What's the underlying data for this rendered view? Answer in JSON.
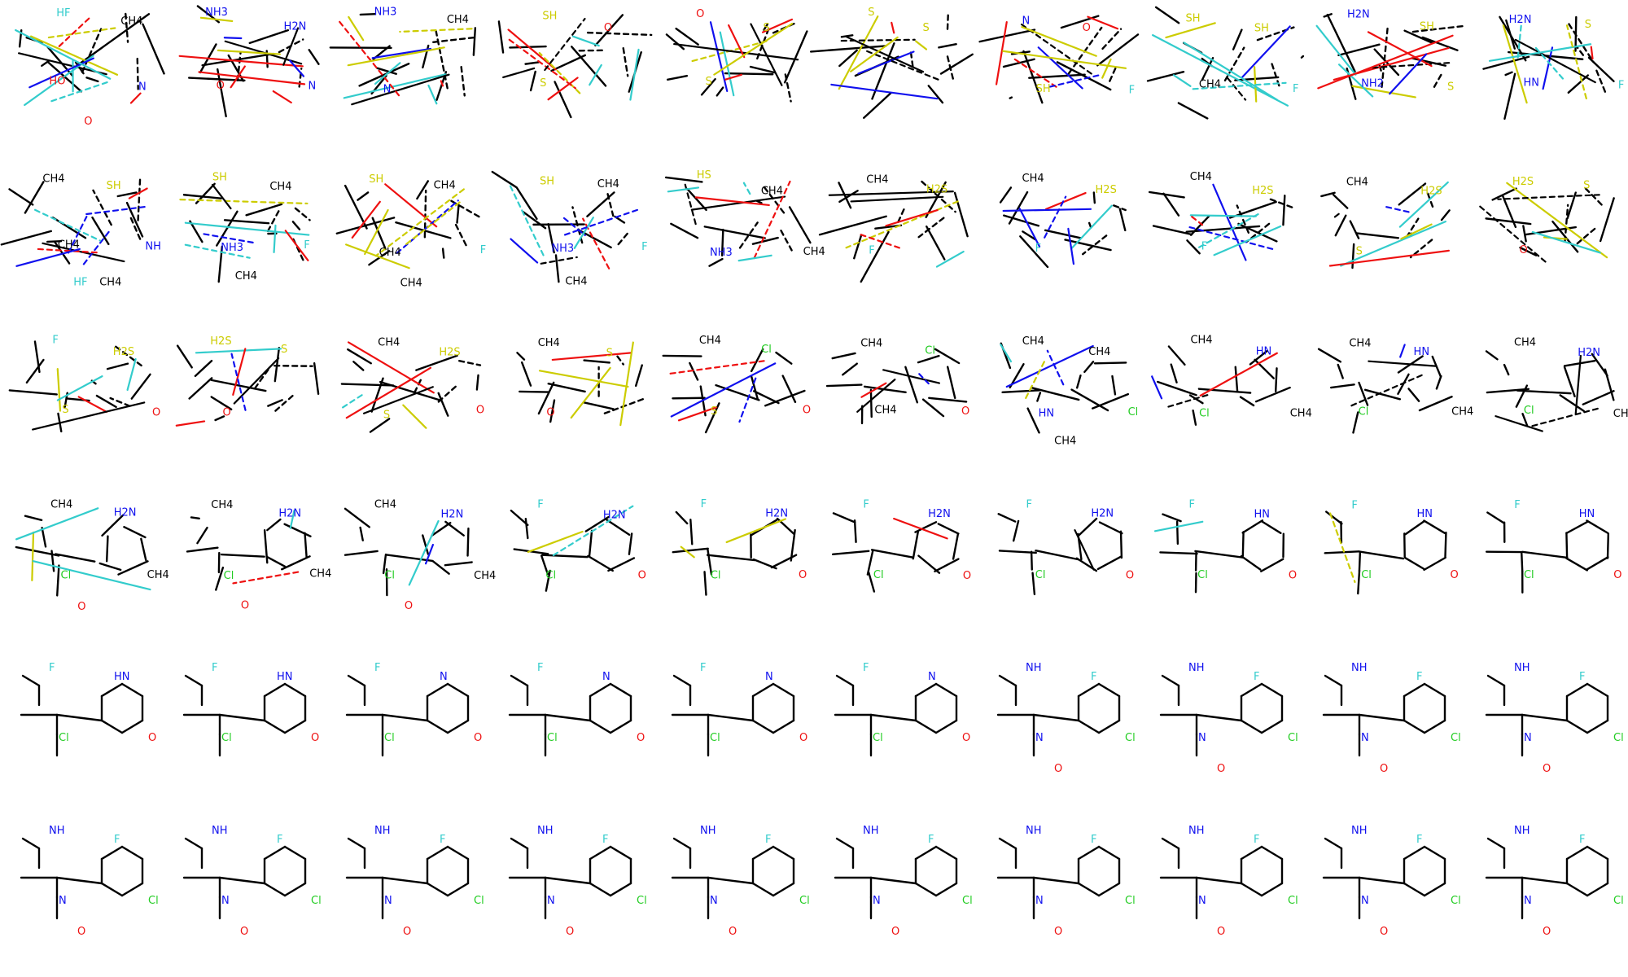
{
  "grid": {
    "rows": 6,
    "cols": 10,
    "colors": {
      "carbon": "#000000",
      "N": "#1010ee",
      "O": "#ee1010",
      "F": "#33cccc",
      "S": "#cccc00",
      "Cl": "#22cc22"
    }
  },
  "cells": [
    {
      "labels": [
        [
          "HF",
          "F"
        ],
        [
          "CH4",
          "C"
        ],
        [
          "HO",
          "O"
        ],
        [
          "N",
          "N"
        ],
        [
          "O",
          "O"
        ]
      ]
    },
    {
      "labels": [
        [
          "NH3",
          "N"
        ],
        [
          "H2N",
          "N"
        ],
        [
          "O",
          "O"
        ],
        [
          "N",
          "N"
        ]
      ]
    },
    {
      "labels": [
        [
          "NH3",
          "N"
        ],
        [
          "CH4",
          "C"
        ],
        [
          "N",
          "N"
        ]
      ]
    },
    {
      "labels": [
        [
          "SH",
          "S"
        ],
        [
          "O",
          "O"
        ],
        [
          "S",
          "S"
        ]
      ]
    },
    {
      "labels": [
        [
          "O",
          "O"
        ],
        [
          "S",
          "S"
        ],
        [
          "S",
          "S"
        ]
      ]
    },
    {
      "labels": [
        [
          "S",
          "S"
        ],
        [
          "S",
          "S"
        ]
      ]
    },
    {
      "labels": [
        [
          "N",
          "N"
        ],
        [
          "O",
          "O"
        ],
        [
          "SH",
          "S"
        ],
        [
          "F",
          "F"
        ]
      ]
    },
    {
      "labels": [
        [
          "SH",
          "S"
        ],
        [
          "SH",
          "S"
        ],
        [
          "CH4",
          "C"
        ],
        [
          "F",
          "F"
        ]
      ]
    },
    {
      "labels": [
        [
          "H2N",
          "N"
        ],
        [
          "SH",
          "S"
        ],
        [
          "NH2",
          "N"
        ],
        [
          "S",
          "S"
        ]
      ]
    },
    {
      "labels": [
        [
          "H2N",
          "N"
        ],
        [
          "S",
          "S"
        ],
        [
          "HN",
          "N"
        ],
        [
          "F",
          "F"
        ]
      ]
    },
    {
      "labels": [
        [
          "CH4",
          "C"
        ],
        [
          "SH",
          "S"
        ],
        [
          "CH4",
          "C"
        ],
        [
          "NH",
          "N"
        ],
        [
          "HF",
          "F"
        ],
        [
          "CH4",
          "C"
        ]
      ]
    },
    {
      "labels": [
        [
          "SH",
          "S"
        ],
        [
          "CH4",
          "C"
        ],
        [
          "NH3",
          "N"
        ],
        [
          "F",
          "F"
        ],
        [
          "CH4",
          "C"
        ]
      ]
    },
    {
      "labels": [
        [
          "SH",
          "S"
        ],
        [
          "CH4",
          "C"
        ],
        [
          "CH4",
          "C"
        ],
        [
          "F",
          "F"
        ],
        [
          "CH4",
          "C"
        ]
      ]
    },
    {
      "labels": [
        [
          "SH",
          "S"
        ],
        [
          "CH4",
          "C"
        ],
        [
          "NH3",
          "N"
        ],
        [
          "F",
          "F"
        ],
        [
          "CH4",
          "C"
        ]
      ]
    },
    {
      "labels": [
        [
          "HS",
          "S"
        ],
        [
          "CH4",
          "C"
        ],
        [
          "NH3",
          "N"
        ],
        [
          "CH4",
          "C"
        ]
      ]
    },
    {
      "labels": [
        [
          "CH4",
          "C"
        ],
        [
          "H2S",
          "S"
        ],
        [
          "F",
          "F"
        ]
      ]
    },
    {
      "labels": [
        [
          "CH4",
          "C"
        ],
        [
          "H2S",
          "S"
        ],
        [
          "F",
          "F"
        ]
      ]
    },
    {
      "labels": [
        [
          "CH4",
          "C"
        ],
        [
          "H2S",
          "S"
        ],
        [
          "F",
          "F"
        ]
      ]
    },
    {
      "labels": [
        [
          "CH4",
          "C"
        ],
        [
          "H2S",
          "S"
        ],
        [
          "S",
          "S"
        ]
      ]
    },
    {
      "labels": [
        [
          "H2S",
          "S"
        ],
        [
          "S",
          "S"
        ],
        [
          "O",
          "O"
        ]
      ]
    },
    {
      "labels": [
        [
          "F",
          "F"
        ],
        [
          "H2S",
          "S"
        ],
        [
          "S",
          "S"
        ],
        [
          "O",
          "O"
        ]
      ]
    },
    {
      "labels": [
        [
          "H2S",
          "S"
        ],
        [
          "S",
          "S"
        ],
        [
          "O",
          "O"
        ]
      ]
    },
    {
      "labels": [
        [
          "CH4",
          "C"
        ],
        [
          "H2S",
          "S"
        ],
        [
          "S",
          "S"
        ],
        [
          "O",
          "O"
        ]
      ]
    },
    {
      "labels": [
        [
          "CH4",
          "C"
        ],
        [
          "S",
          "S"
        ],
        [
          "O",
          "O"
        ]
      ]
    },
    {
      "labels": [
        [
          "CH4",
          "C"
        ],
        [
          "Cl",
          "Cl"
        ],
        [
          "S",
          "S"
        ],
        [
          "O",
          "O"
        ]
      ]
    },
    {
      "labels": [
        [
          "CH4",
          "C"
        ],
        [
          "Cl",
          "Cl"
        ],
        [
          "CH4",
          "C"
        ],
        [
          "O",
          "O"
        ]
      ]
    },
    {
      "labels": [
        [
          "CH4",
          "C"
        ],
        [
          "CH4",
          "C"
        ],
        [
          "HN",
          "N"
        ],
        [
          "Cl",
          "Cl"
        ],
        [
          "CH4",
          "C"
        ]
      ]
    },
    {
      "labels": [
        [
          "CH4",
          "C"
        ],
        [
          "HN",
          "N"
        ],
        [
          "Cl",
          "Cl"
        ],
        [
          "CH4",
          "C"
        ]
      ]
    },
    {
      "labels": [
        [
          "CH4",
          "C"
        ],
        [
          "HN",
          "N"
        ],
        [
          "Cl",
          "Cl"
        ],
        [
          "CH4",
          "C"
        ]
      ]
    },
    {
      "labels": [
        [
          "CH4",
          "C"
        ],
        [
          "H2N",
          "N"
        ],
        [
          "Cl",
          "Cl"
        ],
        [
          "CH4",
          "C"
        ]
      ]
    },
    {
      "labels": [
        [
          "CH4",
          "C"
        ],
        [
          "H2N",
          "N"
        ],
        [
          "Cl",
          "Cl"
        ],
        [
          "CH4",
          "C"
        ],
        [
          "O",
          "O"
        ]
      ]
    },
    {
      "labels": [
        [
          "CH4",
          "C"
        ],
        [
          "H2N",
          "N"
        ],
        [
          "Cl",
          "Cl"
        ],
        [
          "CH4",
          "C"
        ],
        [
          "O",
          "O"
        ]
      ]
    },
    {
      "labels": [
        [
          "CH4",
          "C"
        ],
        [
          "H2N",
          "N"
        ],
        [
          "Cl",
          "Cl"
        ],
        [
          "CH4",
          "C"
        ],
        [
          "O",
          "O"
        ]
      ]
    },
    {
      "labels": [
        [
          "F",
          "F"
        ],
        [
          "H2N",
          "N"
        ],
        [
          "Cl",
          "Cl"
        ],
        [
          "O",
          "O"
        ]
      ]
    },
    {
      "labels": [
        [
          "F",
          "F"
        ],
        [
          "H2N",
          "N"
        ],
        [
          "Cl",
          "Cl"
        ],
        [
          "O",
          "O"
        ]
      ]
    },
    {
      "labels": [
        [
          "F",
          "F"
        ],
        [
          "H2N",
          "N"
        ],
        [
          "Cl",
          "Cl"
        ],
        [
          "O",
          "O"
        ]
      ]
    },
    {
      "labels": [
        [
          "F",
          "F"
        ],
        [
          "H2N",
          "N"
        ],
        [
          "Cl",
          "Cl"
        ],
        [
          "O",
          "O"
        ]
      ]
    },
    {
      "labels": [
        [
          "F",
          "F"
        ],
        [
          "HN",
          "N"
        ],
        [
          "Cl",
          "Cl"
        ],
        [
          "O",
          "O"
        ]
      ]
    },
    {
      "labels": [
        [
          "F",
          "F"
        ],
        [
          "HN",
          "N"
        ],
        [
          "Cl",
          "Cl"
        ],
        [
          "O",
          "O"
        ]
      ]
    },
    {
      "labels": [
        [
          "F",
          "F"
        ],
        [
          "HN",
          "N"
        ],
        [
          "Cl",
          "Cl"
        ],
        [
          "O",
          "O"
        ]
      ]
    },
    {
      "labels": [
        [
          "F",
          "F"
        ],
        [
          "HN",
          "N"
        ],
        [
          "Cl",
          "Cl"
        ],
        [
          "O",
          "O"
        ]
      ]
    },
    {
      "labels": [
        [
          "F",
          "F"
        ],
        [
          "HN",
          "N"
        ],
        [
          "Cl",
          "Cl"
        ],
        [
          "O",
          "O"
        ]
      ]
    },
    {
      "labels": [
        [
          "F",
          "F"
        ],
        [
          "N",
          "N"
        ],
        [
          "Cl",
          "Cl"
        ],
        [
          "O",
          "O"
        ]
      ]
    },
    {
      "labels": [
        [
          "F",
          "F"
        ],
        [
          "N",
          "N"
        ],
        [
          "Cl",
          "Cl"
        ],
        [
          "O",
          "O"
        ]
      ]
    },
    {
      "labels": [
        [
          "F",
          "F"
        ],
        [
          "N",
          "N"
        ],
        [
          "Cl",
          "Cl"
        ],
        [
          "O",
          "O"
        ]
      ]
    },
    {
      "labels": [
        [
          "F",
          "F"
        ],
        [
          "N",
          "N"
        ],
        [
          "Cl",
          "Cl"
        ],
        [
          "O",
          "O"
        ]
      ]
    },
    {
      "labels": [
        [
          "NH",
          "N"
        ],
        [
          "F",
          "F"
        ],
        [
          "N",
          "N"
        ],
        [
          "Cl",
          "Cl"
        ],
        [
          "O",
          "O"
        ]
      ]
    },
    {
      "labels": [
        [
          "NH",
          "N"
        ],
        [
          "F",
          "F"
        ],
        [
          "N",
          "N"
        ],
        [
          "Cl",
          "Cl"
        ],
        [
          "O",
          "O"
        ]
      ]
    },
    {
      "labels": [
        [
          "NH",
          "N"
        ],
        [
          "F",
          "F"
        ],
        [
          "N",
          "N"
        ],
        [
          "Cl",
          "Cl"
        ],
        [
          "O",
          "O"
        ]
      ]
    },
    {
      "labels": [
        [
          "NH",
          "N"
        ],
        [
          "F",
          "F"
        ],
        [
          "N",
          "N"
        ],
        [
          "Cl",
          "Cl"
        ],
        [
          "O",
          "O"
        ]
      ]
    },
    {
      "labels": [
        [
          "NH",
          "N"
        ],
        [
          "F",
          "F"
        ],
        [
          "N",
          "N"
        ],
        [
          "Cl",
          "Cl"
        ],
        [
          "O",
          "O"
        ]
      ]
    },
    {
      "labels": [
        [
          "NH",
          "N"
        ],
        [
          "F",
          "F"
        ],
        [
          "N",
          "N"
        ],
        [
          "Cl",
          "Cl"
        ],
        [
          "O",
          "O"
        ]
      ]
    },
    {
      "labels": [
        [
          "NH",
          "N"
        ],
        [
          "F",
          "F"
        ],
        [
          "N",
          "N"
        ],
        [
          "Cl",
          "Cl"
        ],
        [
          "O",
          "O"
        ]
      ]
    },
    {
      "labels": [
        [
          "NH",
          "N"
        ],
        [
          "F",
          "F"
        ],
        [
          "N",
          "N"
        ],
        [
          "Cl",
          "Cl"
        ],
        [
          "O",
          "O"
        ]
      ]
    },
    {
      "labels": [
        [
          "NH",
          "N"
        ],
        [
          "F",
          "F"
        ],
        [
          "N",
          "N"
        ],
        [
          "Cl",
          "Cl"
        ],
        [
          "O",
          "O"
        ]
      ]
    },
    {
      "labels": [
        [
          "NH",
          "N"
        ],
        [
          "F",
          "F"
        ],
        [
          "N",
          "N"
        ],
        [
          "Cl",
          "Cl"
        ],
        [
          "O",
          "O"
        ]
      ]
    },
    {
      "labels": [
        [
          "NH",
          "N"
        ],
        [
          "F",
          "F"
        ],
        [
          "N",
          "N"
        ],
        [
          "Cl",
          "Cl"
        ],
        [
          "O",
          "O"
        ]
      ]
    },
    {
      "labels": [
        [
          "NH",
          "N"
        ],
        [
          "F",
          "F"
        ],
        [
          "N",
          "N"
        ],
        [
          "Cl",
          "Cl"
        ],
        [
          "O",
          "O"
        ]
      ]
    },
    {
      "labels": [
        [
          "NH",
          "N"
        ],
        [
          "F",
          "F"
        ],
        [
          "N",
          "N"
        ],
        [
          "Cl",
          "Cl"
        ],
        [
          "O",
          "O"
        ]
      ]
    },
    {
      "labels": [
        [
          "NH",
          "N"
        ],
        [
          "F",
          "F"
        ],
        [
          "N",
          "N"
        ],
        [
          "Cl",
          "Cl"
        ],
        [
          "O",
          "O"
        ]
      ]
    }
  ]
}
